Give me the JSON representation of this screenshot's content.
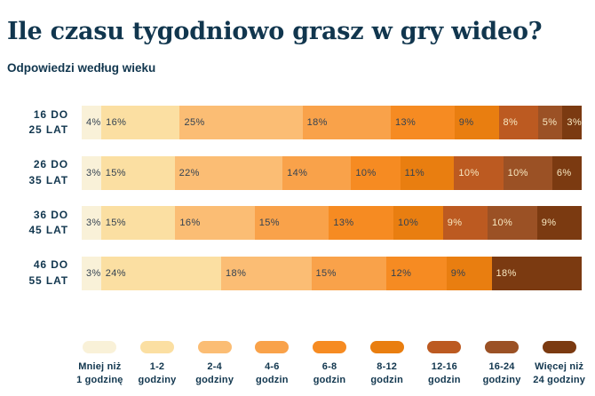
{
  "title": "Ile czasu tygodniowo grasz w gry wideo?",
  "subtitle": "Odpowiedzi według wieku",
  "colors": {
    "background": "#FFFFFF",
    "title_text": "#11364E",
    "pct_text_dark": "#344251",
    "pct_text_light": "#F8E8C1",
    "palette": [
      "#F9F1D8",
      "#FBDFA2",
      "#FBBD74",
      "#F9A24A",
      "#F68B22",
      "#E97E10",
      "#BC5A21",
      "#9B5125",
      "#7B3A11"
    ]
  },
  "legend": [
    {
      "line1": "Mniej niż",
      "line2": "1 godzinę"
    },
    {
      "line1": "1-2",
      "line2": "godziny"
    },
    {
      "line1": "2-4",
      "line2": "godziny"
    },
    {
      "line1": "4-6",
      "line2": "godzin"
    },
    {
      "line1": "6-8",
      "line2": "godzin"
    },
    {
      "line1": "8-12",
      "line2": "godzin"
    },
    {
      "line1": "12-16",
      "line2": "godzin"
    },
    {
      "line1": "16-24",
      "line2": "godziny"
    },
    {
      "line1": "Więcej niż",
      "line2": "24 godziny"
    }
  ],
  "rows": [
    {
      "label_line1": "16 DO",
      "label_line2": "25 LAT",
      "segments": [
        {
          "pct": 4,
          "text": "4%",
          "color_index": 0
        },
        {
          "pct": 16,
          "text": "16%",
          "color_index": 1
        },
        {
          "pct": 25,
          "text": "25%",
          "color_index": 2
        },
        {
          "pct": 18,
          "text": "18%",
          "color_index": 3
        },
        {
          "pct": 13,
          "text": "13%",
          "color_index": 4
        },
        {
          "pct": 9,
          "text": "9%",
          "color_index": 5
        },
        {
          "pct": 8,
          "text": "8%",
          "color_index": 6
        },
        {
          "pct": 5,
          "text": "5%",
          "color_index": 7
        },
        {
          "pct": 3,
          "text": "3%",
          "color_index": 8
        }
      ]
    },
    {
      "label_line1": "26 DO",
      "label_line2": "35 LAT",
      "segments": [
        {
          "pct": 3,
          "text": "3%",
          "color_index": 0
        },
        {
          "pct": 15,
          "text": "15%",
          "color_index": 1
        },
        {
          "pct": 22,
          "text": "22%",
          "color_index": 2
        },
        {
          "pct": 14,
          "text": "14%",
          "color_index": 3
        },
        {
          "pct": 10,
          "text": "10%",
          "color_index": 4
        },
        {
          "pct": 11,
          "text": "11%",
          "color_index": 5
        },
        {
          "pct": 10,
          "text": "10%",
          "color_index": 6
        },
        {
          "pct": 10,
          "text": "10%",
          "color_index": 7
        },
        {
          "pct": 6,
          "text": "6%",
          "color_index": 8
        }
      ]
    },
    {
      "label_line1": "36 DO",
      "label_line2": "45 LAT",
      "segments": [
        {
          "pct": 3,
          "text": "3%",
          "color_index": 0
        },
        {
          "pct": 15,
          "text": "15%",
          "color_index": 1
        },
        {
          "pct": 16,
          "text": "16%",
          "color_index": 2
        },
        {
          "pct": 15,
          "text": "15%",
          "color_index": 3
        },
        {
          "pct": 13,
          "text": "13%",
          "color_index": 4
        },
        {
          "pct": 10,
          "text": "10%",
          "color_index": 5
        },
        {
          "pct": 9,
          "text": "9%",
          "color_index": 6
        },
        {
          "pct": 10,
          "text": "10%",
          "color_index": 7
        },
        {
          "pct": 9,
          "text": "9%",
          "color_index": 8
        }
      ]
    },
    {
      "label_line1": "46 DO",
      "label_line2": "55 LAT",
      "segments": [
        {
          "pct": 3,
          "text": "3%",
          "color_index": 0
        },
        {
          "pct": 24,
          "text": "24%",
          "color_index": 1
        },
        {
          "pct": 18,
          "text": "18%",
          "color_index": 2
        },
        {
          "pct": 15,
          "text": "15%",
          "color_index": 3
        },
        {
          "pct": 12,
          "text": "12%",
          "color_index": 4
        },
        {
          "pct": 9,
          "text": "9%",
          "color_index": 5
        },
        {
          "pct": 18,
          "text": "18%",
          "color_index": 8
        }
      ]
    }
  ],
  "chart_data": {
    "type": "bar",
    "orientation": "horizontal",
    "stacked": true,
    "title": "Ile czasu tygodniowo grasz w gry wideo?",
    "subtitle": "Odpowiedzi według wieku",
    "unit": "%",
    "categories": [
      "16 do 25 lat",
      "26 do 35 lat",
      "36 do 45 lat",
      "46 do 55 lat"
    ],
    "series": [
      {
        "name": "Mniej niż 1 godzinę",
        "values": [
          4,
          3,
          3,
          3
        ]
      },
      {
        "name": "1-2 godziny",
        "values": [
          16,
          15,
          15,
          24
        ]
      },
      {
        "name": "2-4 godziny",
        "values": [
          25,
          22,
          16,
          18
        ]
      },
      {
        "name": "4-6 godzin",
        "values": [
          18,
          14,
          15,
          15
        ]
      },
      {
        "name": "6-8 godzin",
        "values": [
          13,
          10,
          13,
          12
        ]
      },
      {
        "name": "8-12 godzin",
        "values": [
          9,
          11,
          10,
          9
        ]
      },
      {
        "name": "12-16 godzin",
        "values": [
          8,
          10,
          9,
          0
        ]
      },
      {
        "name": "16-24 godziny",
        "values": [
          5,
          10,
          10,
          0
        ]
      },
      {
        "name": "Więcej niż 24 godziny",
        "values": [
          3,
          6,
          9,
          18
        ]
      }
    ],
    "legend_position": "bottom",
    "grid": false,
    "xlim": [
      0,
      100
    ]
  }
}
